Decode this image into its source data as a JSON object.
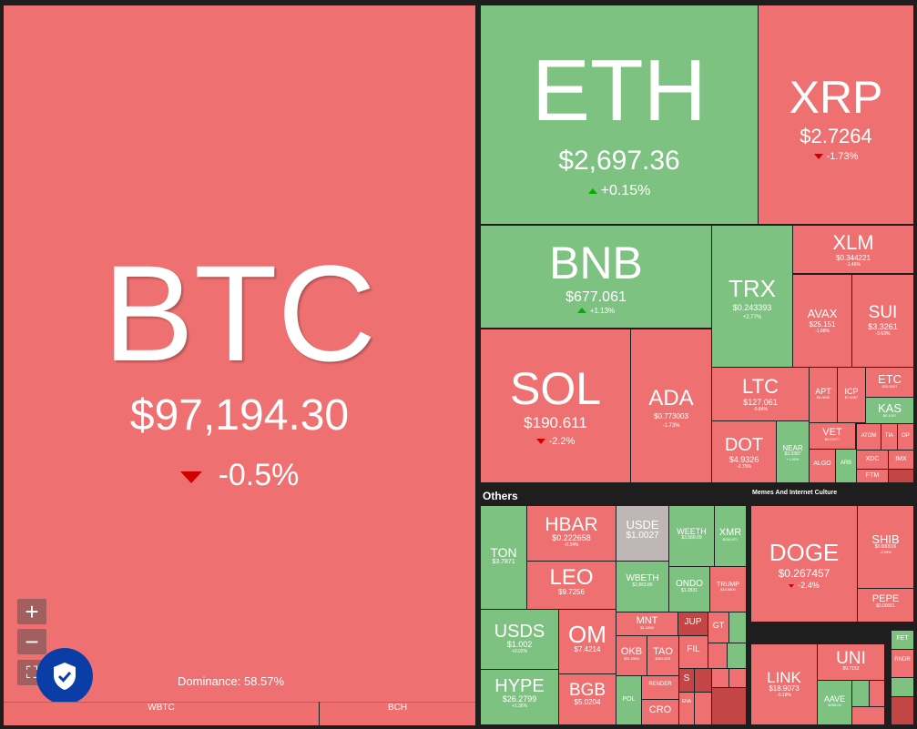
{
  "colors": {
    "red": "#ef7070",
    "green": "#7ec282",
    "gray": "#bfb6b6",
    "dark_red": "#c34545",
    "shield_blue": "#0a3ea6"
  },
  "btc": {
    "symbol": "BTC",
    "price": "$97,194.30",
    "change": "-0.5%",
    "dominance": "Dominance: 58.57%"
  },
  "eth": {
    "symbol": "ETH",
    "price": "$2,697.36",
    "change": "+0.15%"
  },
  "xrp": {
    "symbol": "XRP",
    "price": "$2.7264",
    "change": "-1.73%"
  },
  "bnb": {
    "symbol": "BNB",
    "price": "$677.061",
    "change": "+1.13%"
  },
  "trx": {
    "symbol": "TRX",
    "price": "$0.243393",
    "change": "+2.77%"
  },
  "xlm": {
    "symbol": "XLM",
    "price": "$0.344221",
    "change": "-1.46%"
  },
  "avax": {
    "symbol": "AVAX",
    "price": "$25.151",
    "change": "-1.88%"
  },
  "sui": {
    "symbol": "SUI",
    "price": "$3.3261",
    "change": "-3.63%"
  },
  "sol": {
    "symbol": "SOL",
    "price": "$190.611",
    "change": "-2.2%"
  },
  "ada": {
    "symbol": "ADA",
    "price": "$0.773003",
    "change": "-1.73%"
  },
  "ltc": {
    "symbol": "LTC",
    "price": "$127.061",
    "change": "-0.84%"
  },
  "dot": {
    "symbol": "DOT",
    "price": "$4.9326",
    "change": "-2.75%"
  },
  "near": {
    "symbol": "NEAR",
    "price": "$3.3387",
    "change": "+1.26%"
  },
  "apt": {
    "symbol": "APT",
    "price": "$6.0630",
    "change": "-1.1%"
  },
  "icp": {
    "symbol": "ICP",
    "price": "$7.6287",
    "change": "-1.9%"
  },
  "etc": {
    "symbol": "ETC",
    "price": "$20.5407",
    "change": "-1.6%"
  },
  "kas": {
    "symbol": "KAS",
    "price": "$0.1097",
    "change": "+0.5%"
  },
  "vet": {
    "symbol": "VET",
    "price": "$0.03477",
    "change": "-1.9%"
  },
  "small_tiles": [
    "ALGO",
    "ARB",
    "ATOM",
    "TIA",
    "OP",
    "XDC",
    "IMX",
    "FTM"
  ],
  "others": {
    "label": "Others",
    "memes_label": "Memes And Internet Culture",
    "ton": {
      "symbol": "TON",
      "price": "$3.7871",
      "change": "+1.1%"
    },
    "hbar": {
      "symbol": "HBAR",
      "price": "$0.222658",
      "change": "-0.34%"
    },
    "usde": {
      "symbol": "USDE",
      "price": "$1.0027",
      "change": "0%"
    },
    "weeth": {
      "symbol": "WEETH",
      "price": "$3,568.09",
      "change": "+0.1%"
    },
    "xmr": {
      "symbol": "XMR",
      "price": "$236.871",
      "change": "+1.2%"
    },
    "leo": {
      "symbol": "LEO",
      "price": "$9.7256",
      "change": "-0.99%"
    },
    "wbeth": {
      "symbol": "WBETH",
      "price": "$2,863.86",
      "change": "+0.09%"
    },
    "ondo": {
      "symbol": "ONDO",
      "price": "$1.2831",
      "change": "+0.2%"
    },
    "trump": {
      "symbol": "TRUMP",
      "price": "$16.8800",
      "change": "-1.4%"
    },
    "usds": {
      "symbol": "USDS",
      "price": "$1.002",
      "change": "+0.02%"
    },
    "om": {
      "symbol": "OM",
      "price": "$7.4214",
      "change": "-2.1%"
    },
    "mnt": {
      "symbol": "MNT",
      "price": "$1.0265"
    },
    "jup": {
      "symbol": "JUP"
    },
    "gt": {
      "symbol": "GT"
    },
    "okb": {
      "symbol": "OKB",
      "price": "$51.0963"
    },
    "tao": {
      "symbol": "TAO",
      "price": "$364.878"
    },
    "fil": {
      "symbol": "FIL"
    },
    "hype": {
      "symbol": "HYPE",
      "price": "$26.2799",
      "change": "+1.36%"
    },
    "bgb": {
      "symbol": "BGB",
      "price": "$5.0204",
      "change": "-1.39%"
    },
    "pol": {
      "symbol": "POL"
    },
    "render": {
      "symbol": "RENDER"
    },
    "cro": {
      "symbol": "CRO"
    },
    "s": {
      "symbol": "S"
    },
    "ena": {
      "symbol": "ENA"
    },
    "doge": {
      "symbol": "DOGE",
      "price": "$0.267457",
      "change": "-2.4%"
    },
    "shib": {
      "symbol": "SHIB",
      "price": "$0.000016",
      "change": "-3.09%"
    },
    "pepe": {
      "symbol": "PEPE",
      "price": "$0.00001"
    },
    "link": {
      "symbol": "LINK",
      "price": "$18.9073",
      "change": "-0.18%"
    },
    "uni": {
      "symbol": "UNI",
      "price": "$9.7152"
    },
    "aave": {
      "symbol": "AAVE",
      "price": "$256.04"
    },
    "fet": {
      "symbol": "FET"
    },
    "rndr": {
      "symbol": "RNDR"
    }
  },
  "bottom_bar": {
    "wbtc": "WBTC",
    "bch": "BCH"
  },
  "controls": {
    "zoom_in": "+",
    "zoom_out": "−",
    "fullscreen": "⛶"
  }
}
